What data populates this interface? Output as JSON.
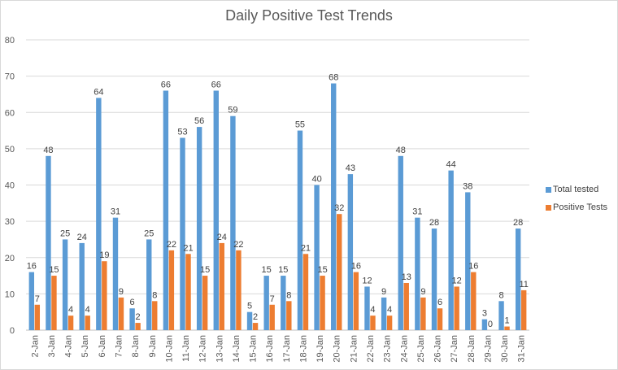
{
  "chart_data": {
    "type": "bar",
    "title": "Daily Positive Test Trends",
    "xlabel": "",
    "ylabel": "",
    "ylim": [
      0,
      80
    ],
    "yticks": [
      0,
      10,
      20,
      30,
      40,
      50,
      60,
      70,
      80
    ],
    "grid": true,
    "legend_position": "right",
    "categories": [
      "2-Jan",
      "3-Jan",
      "4-Jan",
      "5-Jan",
      "6-Jan",
      "7-Jan",
      "8-Jan",
      "9-Jan",
      "10-Jan",
      "11-Jan",
      "12-Jan",
      "13-Jan",
      "14-Jan",
      "15-Jan",
      "16-Jan",
      "17-Jan",
      "18-Jan",
      "19-Jan",
      "20-Jan",
      "21-Jan",
      "22-Jan",
      "23-Jan",
      "24-Jan",
      "25-Jan",
      "26-Jan",
      "27-Jan",
      "28-Jan",
      "29-Jan",
      "30-Jan",
      "31-Jan"
    ],
    "series": [
      {
        "name": "Total tested",
        "color": "#5b9bd5",
        "values": [
          16,
          48,
          25,
          24,
          64,
          31,
          6,
          25,
          66,
          53,
          56,
          66,
          59,
          5,
          15,
          15,
          55,
          40,
          68,
          43,
          12,
          9,
          48,
          31,
          28,
          44,
          38,
          3,
          8,
          28
        ]
      },
      {
        "name": "Positive Tests",
        "color": "#ed7d31",
        "values": [
          7,
          15,
          4,
          4,
          19,
          9,
          2,
          8,
          22,
          21,
          15,
          24,
          22,
          2,
          7,
          8,
          21,
          15,
          32,
          16,
          4,
          4,
          13,
          9,
          6,
          12,
          16,
          0,
          1,
          11
        ]
      }
    ]
  }
}
